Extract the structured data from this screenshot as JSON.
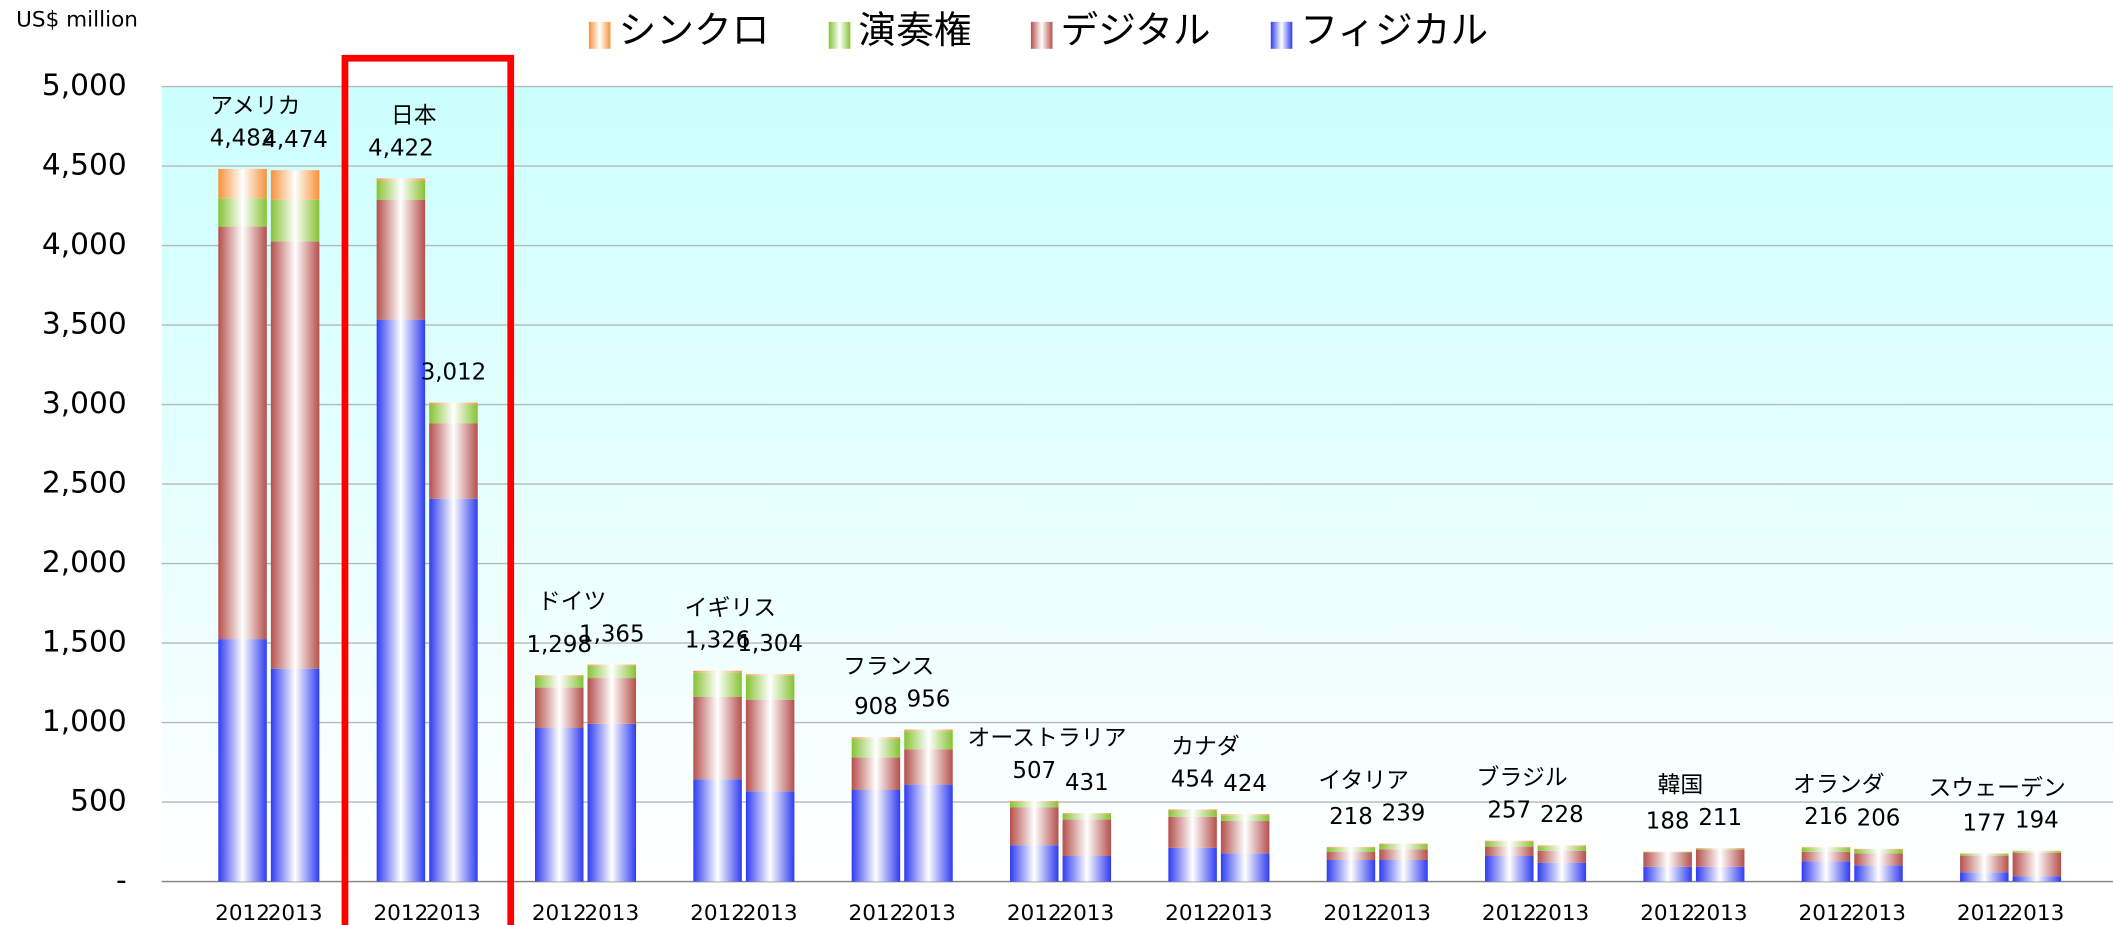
{
  "chart_data": {
    "type": "bar",
    "stacked": true,
    "y_label": "US$ million",
    "countries": [
      "アメリカ",
      "日本",
      "ドイツ",
      "イギリス",
      "フランス",
      "オーストラリア",
      "カナダ",
      "イタリア",
      "ブラジル",
      "韓国",
      "オランダ",
      "スウェーデン"
    ],
    "years": [
      "2012",
      "2013"
    ],
    "series": [
      {
        "name": "フィジカル",
        "color": "#2f3cf0",
        "values": [
          1525,
          1339,
          3534,
          2407,
          966,
          992,
          644,
          568,
          576,
          610,
          229,
          161,
          212,
          178,
          136,
          136,
          161,
          119,
          93,
          93,
          127,
          102,
          59,
          34
        ]
      },
      {
        "name": "デジタル",
        "color": "#b5504c",
        "values": [
          2594,
          2686,
          754,
          474,
          254,
          288,
          517,
          576,
          204,
          221,
          237,
          229,
          195,
          203,
          50,
          67,
          59,
          75,
          90,
          108,
          60,
          76,
          104,
          146
        ]
      },
      {
        "name": "演奏権",
        "color": "#86c232",
        "values": [
          178,
          263,
          119,
          119,
          70,
          77,
          153,
          150,
          118,
          115,
          34,
          36,
          40,
          36,
          26,
          30,
          30,
          28,
          3,
          6,
          24,
          23,
          11,
          11
        ]
      },
      {
        "name": "シンクロ",
        "color": "#f7923a",
        "values": [
          185,
          186,
          15,
          12,
          8,
          8,
          12,
          10,
          10,
          10,
          7,
          5,
          7,
          7,
          6,
          6,
          7,
          6,
          2,
          4,
          5,
          5,
          3,
          3
        ]
      }
    ],
    "totals": [
      4482,
      4474,
      4422,
      3012,
      1298,
      1365,
      1326,
      1304,
      908,
      956,
      507,
      431,
      454,
      424,
      218,
      239,
      257,
      228,
      188,
      211,
      216,
      206,
      177,
      194
    ],
    "total_labels": [
      "4,482",
      "4,474",
      "4,422",
      "3,012",
      "1,298",
      "1,365",
      "1,326",
      "1,304",
      "908",
      "956",
      "507",
      "431",
      "454",
      "424",
      "218",
      "239",
      "257",
      "228",
      "188",
      "211",
      "216",
      "206",
      "177",
      "194"
    ],
    "ylim": [
      0,
      5000
    ],
    "yticks": [
      {
        "value": 0,
        "label": "-"
      },
      500,
      {
        "value": 1000,
        "label": "1,000"
      },
      {
        "value": 1500,
        "label": "1,500"
      },
      {
        "value": 2000,
        "label": "2,000"
      },
      {
        "value": 2500,
        "label": "2,500"
      },
      {
        "value": 3000,
        "label": "3,000"
      },
      {
        "value": 3500,
        "label": "3,500"
      },
      {
        "value": 4000,
        "label": "4,000"
      },
      {
        "value": 4500,
        "label": "4,500"
      },
      {
        "value": 5000,
        "label": "5,000"
      }
    ],
    "grid": true
  }
}
